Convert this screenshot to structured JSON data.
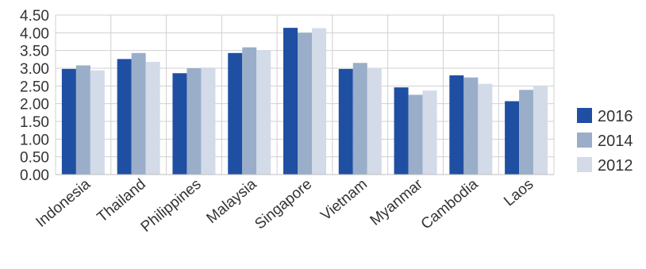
{
  "chart_data": {
    "type": "bar",
    "title": "",
    "xlabel": "",
    "ylabel": "",
    "categories": [
      "Indonesia",
      "Thailand",
      "Philippines",
      "Malaysia",
      "Singapore",
      "Vietnam",
      "Myanmar",
      "Cambodia",
      "Laos"
    ],
    "series": [
      {
        "name": "2016",
        "values": [
          2.98,
          3.26,
          2.86,
          3.43,
          4.14,
          2.98,
          2.46,
          2.8,
          2.07
        ],
        "color": "#1f4fa3"
      },
      {
        "name": "2014",
        "values": [
          3.08,
          3.43,
          3.0,
          3.59,
          4.0,
          3.15,
          2.25,
          2.74,
          2.39
        ],
        "color": "#9aaec9"
      },
      {
        "name": "2012",
        "values": [
          2.94,
          3.18,
          3.02,
          3.51,
          4.13,
          3.0,
          2.37,
          2.56,
          2.5
        ],
        "color": "#d3dbe8"
      }
    ],
    "ylim": [
      0,
      4.5
    ],
    "yticks": [
      0.0,
      0.5,
      1.0,
      1.5,
      2.0,
      2.5,
      3.0,
      3.5,
      4.0,
      4.5
    ],
    "ytick_labels": [
      "0.00",
      "0.50",
      "1.00",
      "1.50",
      "2.00",
      "2.50",
      "3.00",
      "3.50",
      "4.00",
      "4.50"
    ],
    "grid": "horizontal and vertical category separators",
    "legend_position": "right"
  }
}
